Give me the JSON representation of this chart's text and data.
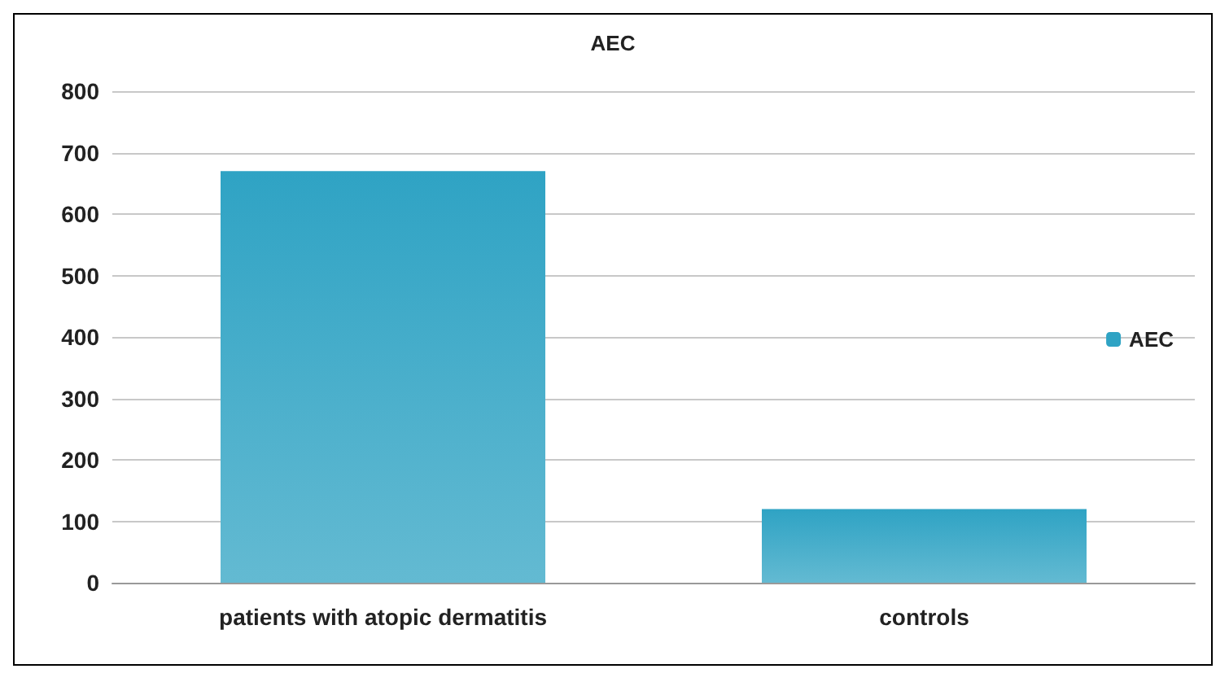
{
  "chart_data": {
    "type": "bar",
    "title": "AEC",
    "categories": [
      "patients with atopic dermatitis",
      "controls"
    ],
    "series": [
      {
        "name": "AEC",
        "color": "#2fa3c4",
        "values": [
          670,
          120
        ]
      }
    ],
    "ylim": [
      0,
      800
    ],
    "yticks": [
      0,
      100,
      200,
      300,
      400,
      500,
      600,
      700,
      800
    ],
    "grid": "y",
    "legend": "right"
  }
}
